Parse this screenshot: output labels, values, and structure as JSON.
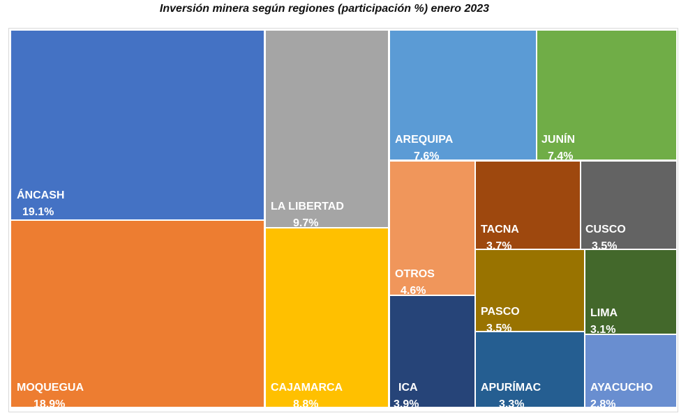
{
  "chart_data": {
    "type": "treemap",
    "title": "Inversión minera según regiones (participación %) enero 2023",
    "unit": "%",
    "items": [
      {
        "name": "ÁNCASH",
        "value": 19.1,
        "value_label": "19.1%",
        "color": "#4472C4"
      },
      {
        "name": "MOQUEGUA",
        "value": 18.9,
        "value_label": "18.9%",
        "color": "#ED7D31"
      },
      {
        "name": "LA LIBERTAD",
        "value": 9.7,
        "value_label": "9.7%",
        "color": "#A5A5A5"
      },
      {
        "name": "CAJAMARCA",
        "value": 8.8,
        "value_label": "8.8%",
        "color": "#FFC000"
      },
      {
        "name": "AREQUIPA",
        "value": 7.6,
        "value_label": "7.6%",
        "color": "#5B9BD5"
      },
      {
        "name": "JUNÍN",
        "value": 7.4,
        "value_label": "7.4%",
        "color": "#70AD47"
      },
      {
        "name": "OTROS",
        "value": 4.6,
        "value_label": "4.6%",
        "color": "#F0965B"
      },
      {
        "name": "ICA",
        "value": 3.9,
        "value_label": "3.9%",
        "color": "#264478"
      },
      {
        "name": "TACNA",
        "value": 3.7,
        "value_label": "3.7%",
        "color": "#9E480E"
      },
      {
        "name": "CUSCO",
        "value": 3.5,
        "value_label": "3.5%",
        "color": "#636363"
      },
      {
        "name": "PASCO",
        "value": 3.5,
        "value_label": "3.5%",
        "color": "#997300"
      },
      {
        "name": "LIMA",
        "value": 3.1,
        "value_label": "3.1%",
        "color": "#43682B"
      },
      {
        "name": "APURÍMAC",
        "value": 3.3,
        "value_label": "3.3%",
        "color": "#255E91"
      },
      {
        "name": "AYACUCHO",
        "value": 2.8,
        "value_label": "2.8%",
        "color": "#698ED0"
      }
    ]
  }
}
